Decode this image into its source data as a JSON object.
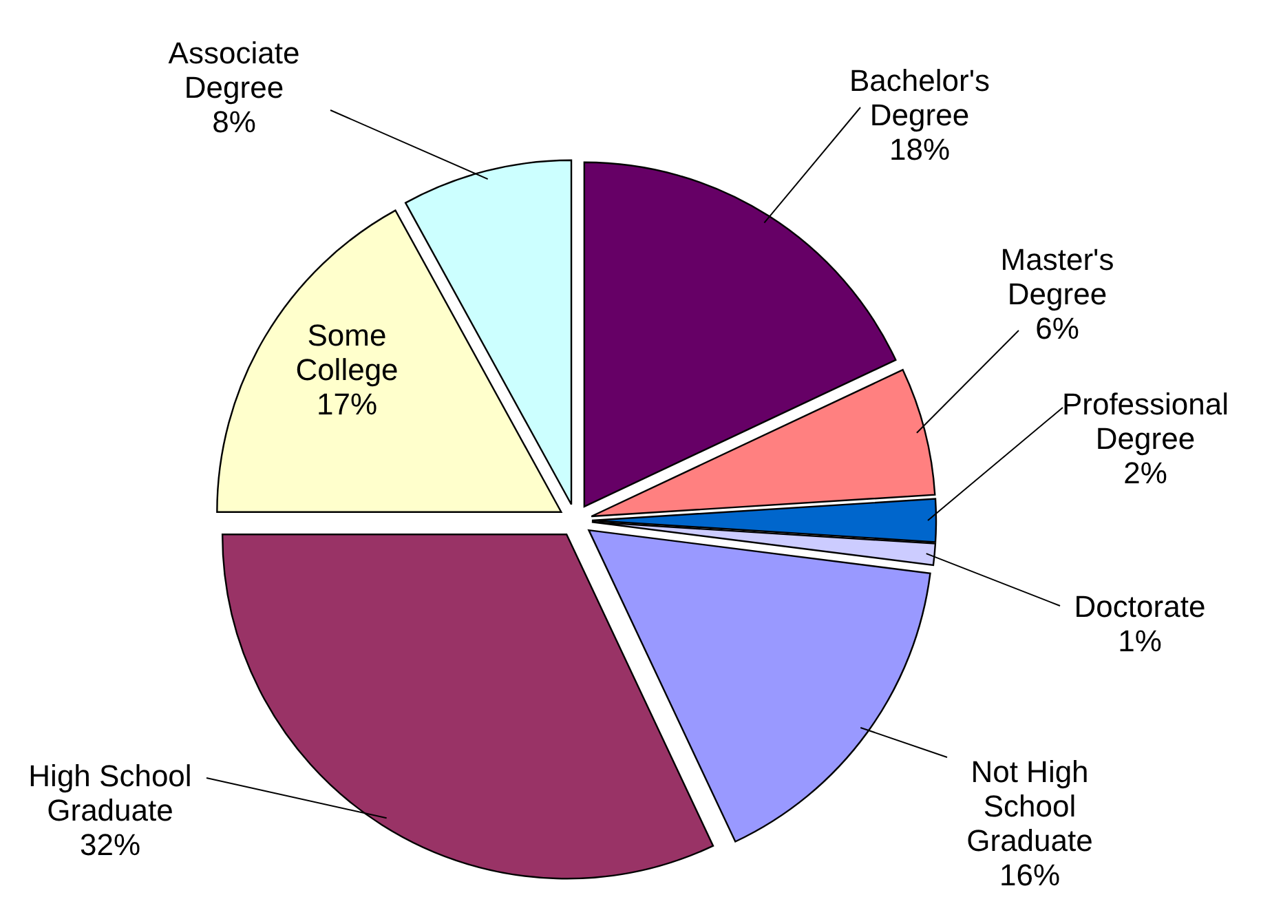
{
  "chart_data": {
    "type": "pie",
    "categories": [
      "Bachelor's\nDegree",
      "Master's\nDegree",
      "Professional\nDegree",
      "Doctorate",
      "Not High\nSchool\nGraduate",
      "High School\nGraduate",
      "Some\nCollege",
      "Associate\nDegree"
    ],
    "values": [
      18,
      6,
      2,
      1,
      16,
      32,
      17,
      8
    ],
    "colors": [
      "#660066",
      "#ff8080",
      "#0066cc",
      "#ccccff",
      "#9999ff",
      "#993366",
      "#ffffcc",
      "#ccffff"
    ],
    "value_labels": [
      "18%",
      "6%",
      "2%",
      "1%",
      "16%",
      "32%",
      "17%",
      "8%"
    ]
  }
}
